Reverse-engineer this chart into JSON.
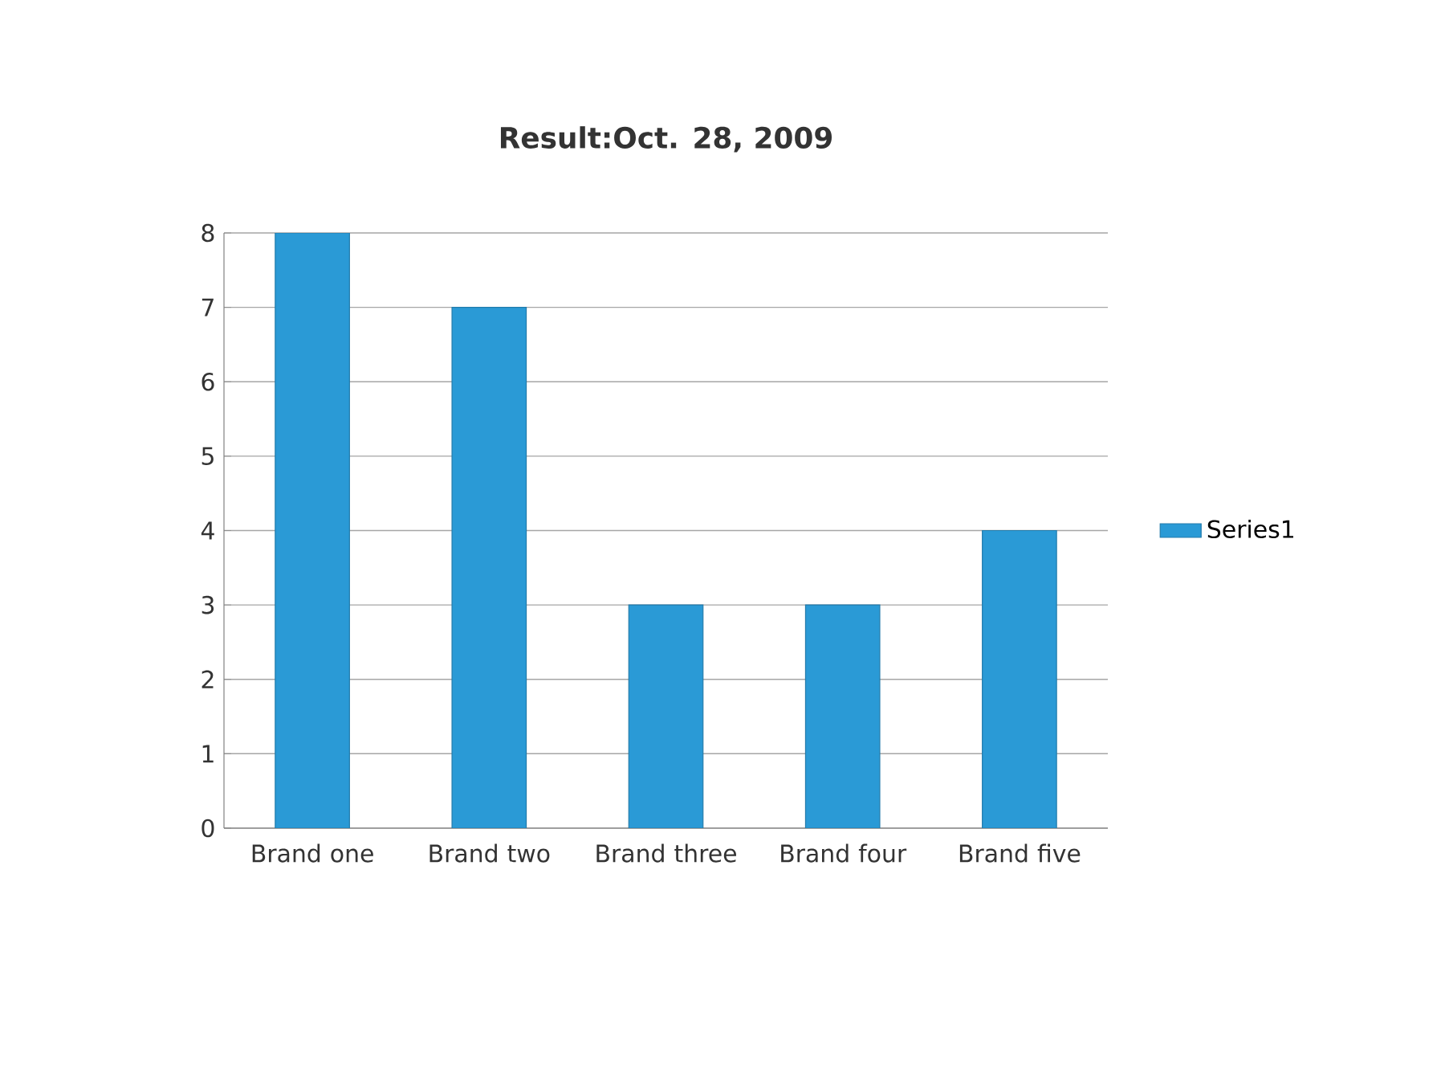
{
  "chart_data": {
    "type": "bar",
    "title": "Result:Oct. 28, 2009",
    "categories": [
      "Brand one",
      "Brand two",
      "Brand three",
      "Brand four",
      "Brand five"
    ],
    "series": [
      {
        "name": "Series1",
        "color": "#2a9ad6",
        "values": [
          8,
          7,
          3,
          3,
          4
        ]
      }
    ],
    "ylim": [
      0,
      8
    ],
    "yticks": [
      0,
      1,
      2,
      3,
      4,
      5,
      6,
      7,
      8
    ],
    "grid": "y",
    "legend": "right"
  }
}
